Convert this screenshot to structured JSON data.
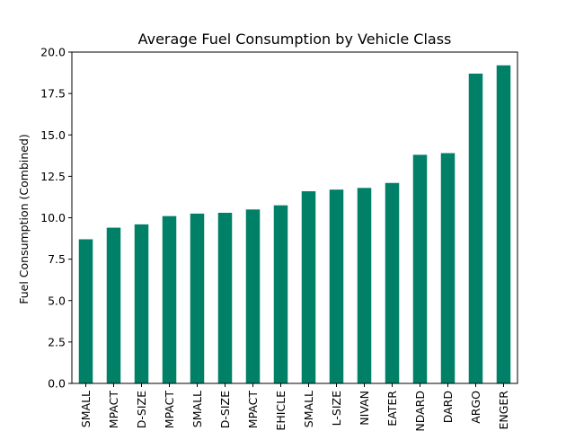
{
  "chart_data": {
    "type": "bar",
    "title": "Average Fuel Consumption by Vehicle Class",
    "xlabel": "",
    "ylabel": "Fuel Consumption (Combined)",
    "ylim": [
      0,
      20.0
    ],
    "yticks": [
      "0.0",
      "2.5",
      "5.0",
      "7.5",
      "10.0",
      "12.5",
      "15.0",
      "17.5",
      "20.0"
    ],
    "ytick_values": [
      0,
      2.5,
      5,
      7.5,
      10,
      12.5,
      15,
      17.5,
      20
    ],
    "categories": [
      "SMALL",
      "MPACT",
      "D-SIZE",
      "MPACT",
      "SMALL",
      "D-SIZE",
      "MPACT",
      "EHICLE",
      "SMALL",
      "L-SIZE",
      "NIVAN",
      "EATER",
      "NDARD",
      "DARD",
      "ARGO",
      "ENGER"
    ],
    "values": [
      8.7,
      9.4,
      9.6,
      10.1,
      10.25,
      10.3,
      10.5,
      10.75,
      11.6,
      11.7,
      11.8,
      12.1,
      13.8,
      13.9,
      18.7,
      19.2
    ],
    "bar_color": "#008066",
    "grid": false,
    "legend": "none"
  }
}
